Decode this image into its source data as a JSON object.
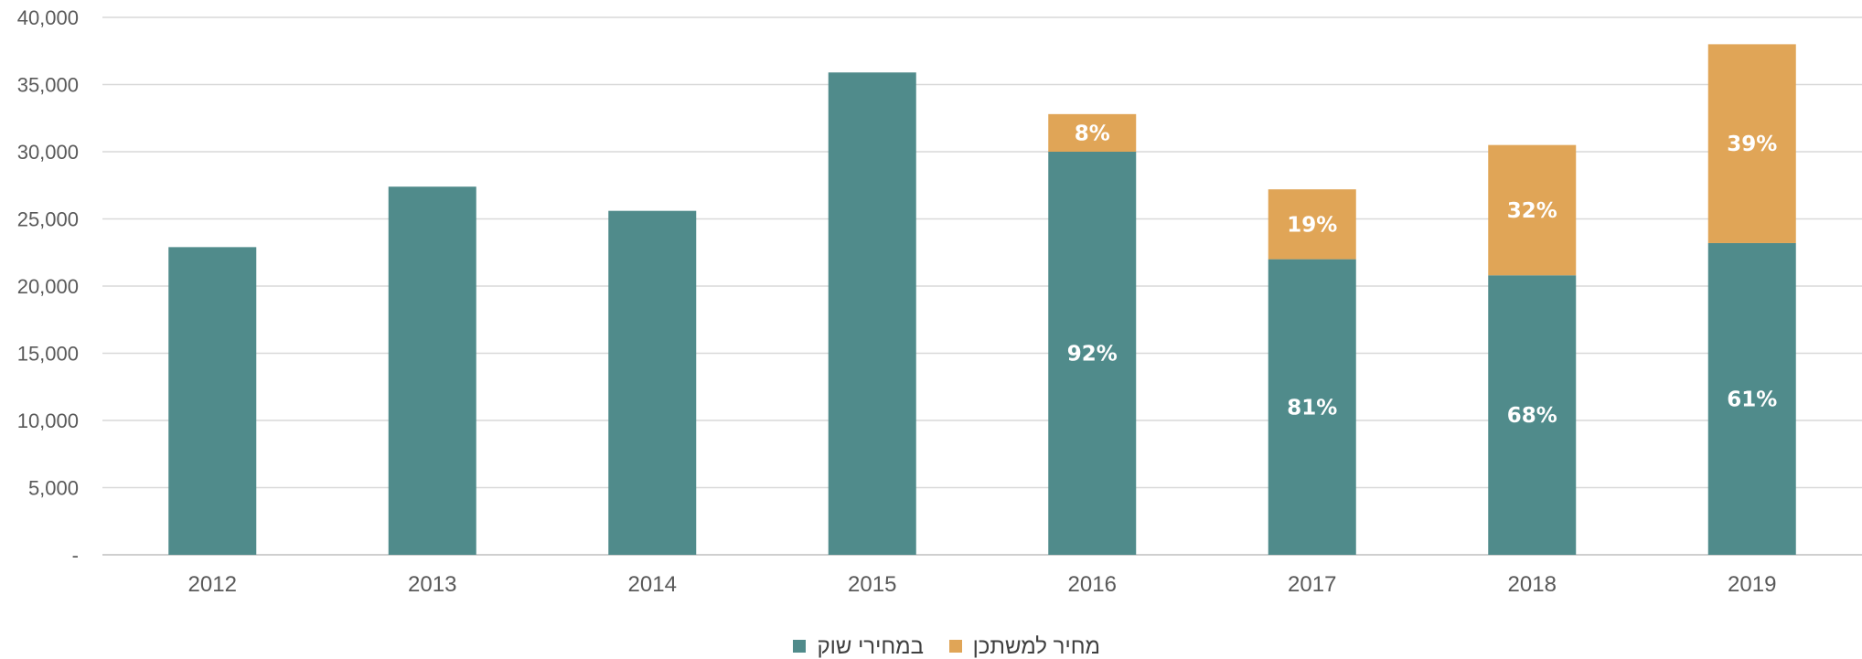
{
  "chart_data": {
    "type": "bar",
    "stacked": true,
    "categories": [
      "2012",
      "2013",
      "2014",
      "2015",
      "2016",
      "2017",
      "2018",
      "2019"
    ],
    "series": [
      {
        "name": "במחירי שוק",
        "color": "#508b8b",
        "values": [
          22900,
          27400,
          25600,
          35900,
          30000,
          22000,
          20800,
          23200
        ],
        "labels": [
          "",
          "",
          "",
          "",
          "92%",
          "81%",
          "68%",
          "61%"
        ]
      },
      {
        "name": "מחיר למשתכן",
        "color": "#e0a557",
        "values": [
          0,
          0,
          0,
          0,
          2800,
          5200,
          9700,
          14800
        ],
        "labels": [
          "",
          "",
          "",
          "",
          "8%",
          "19%",
          "32%",
          "39%"
        ]
      }
    ],
    "ylim": [
      0,
      40000
    ],
    "yticks": [
      "-",
      "5,000",
      "10,000",
      "15,000",
      "20,000",
      "25,000",
      "30,000",
      "35,000",
      "40,000"
    ],
    "grid": true,
    "legend": "bottom-center"
  }
}
